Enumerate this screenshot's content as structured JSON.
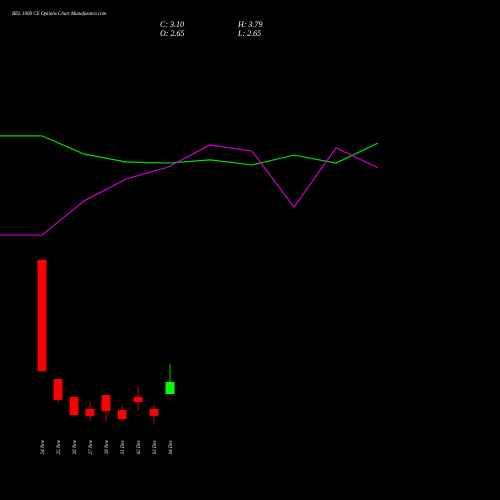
{
  "chart_data": {
    "type": "candlestick",
    "title": "BEL 1000 CE Options Chart Munafasutra.com",
    "info": {
      "close": "C: 3.10",
      "high": "H: 3.79",
      "open": "O: 2.65",
      "low": "L: 2.65"
    },
    "categories": [
      "24 Nov",
      "25 Nov",
      "26 Nov",
      "27 Nov",
      "28 Nov",
      "01 Dec",
      "02 Dec",
      "03 Dec",
      "04 Dec"
    ],
    "open": [
      7.68,
      3.21,
      2.54,
      2.09,
      2.61,
      2.05,
      2.54,
      2.09,
      2.65
    ],
    "high": [
      7.68,
      3.21,
      2.54,
      2.35,
      2.61,
      2.2,
      2.95,
      2.24,
      3.79
    ],
    "low": [
      3.51,
      2.31,
      1.86,
      1.64,
      1.6,
      1.64,
      2.05,
      1.53,
      2.65
    ],
    "close": [
      3.51,
      2.43,
      1.86,
      1.83,
      2.01,
      1.71,
      2.35,
      1.83,
      3.1
    ],
    "up_color": "#00ff00",
    "down_color": "#ff0000",
    "lines": [
      {
        "color": "#00dd00",
        "values": [
          12.33,
          11.65,
          11.35,
          11.31,
          11.43,
          11.24,
          11.61,
          11.31,
          12.06
        ]
      },
      {
        "color": "#cc00cc",
        "values": [
          8.61,
          9.89,
          10.71,
          11.16,
          11.99,
          11.76,
          9.66,
          11.88,
          11.13
        ]
      }
    ],
    "ylim": [
      -1.325,
      17.425
    ]
  }
}
